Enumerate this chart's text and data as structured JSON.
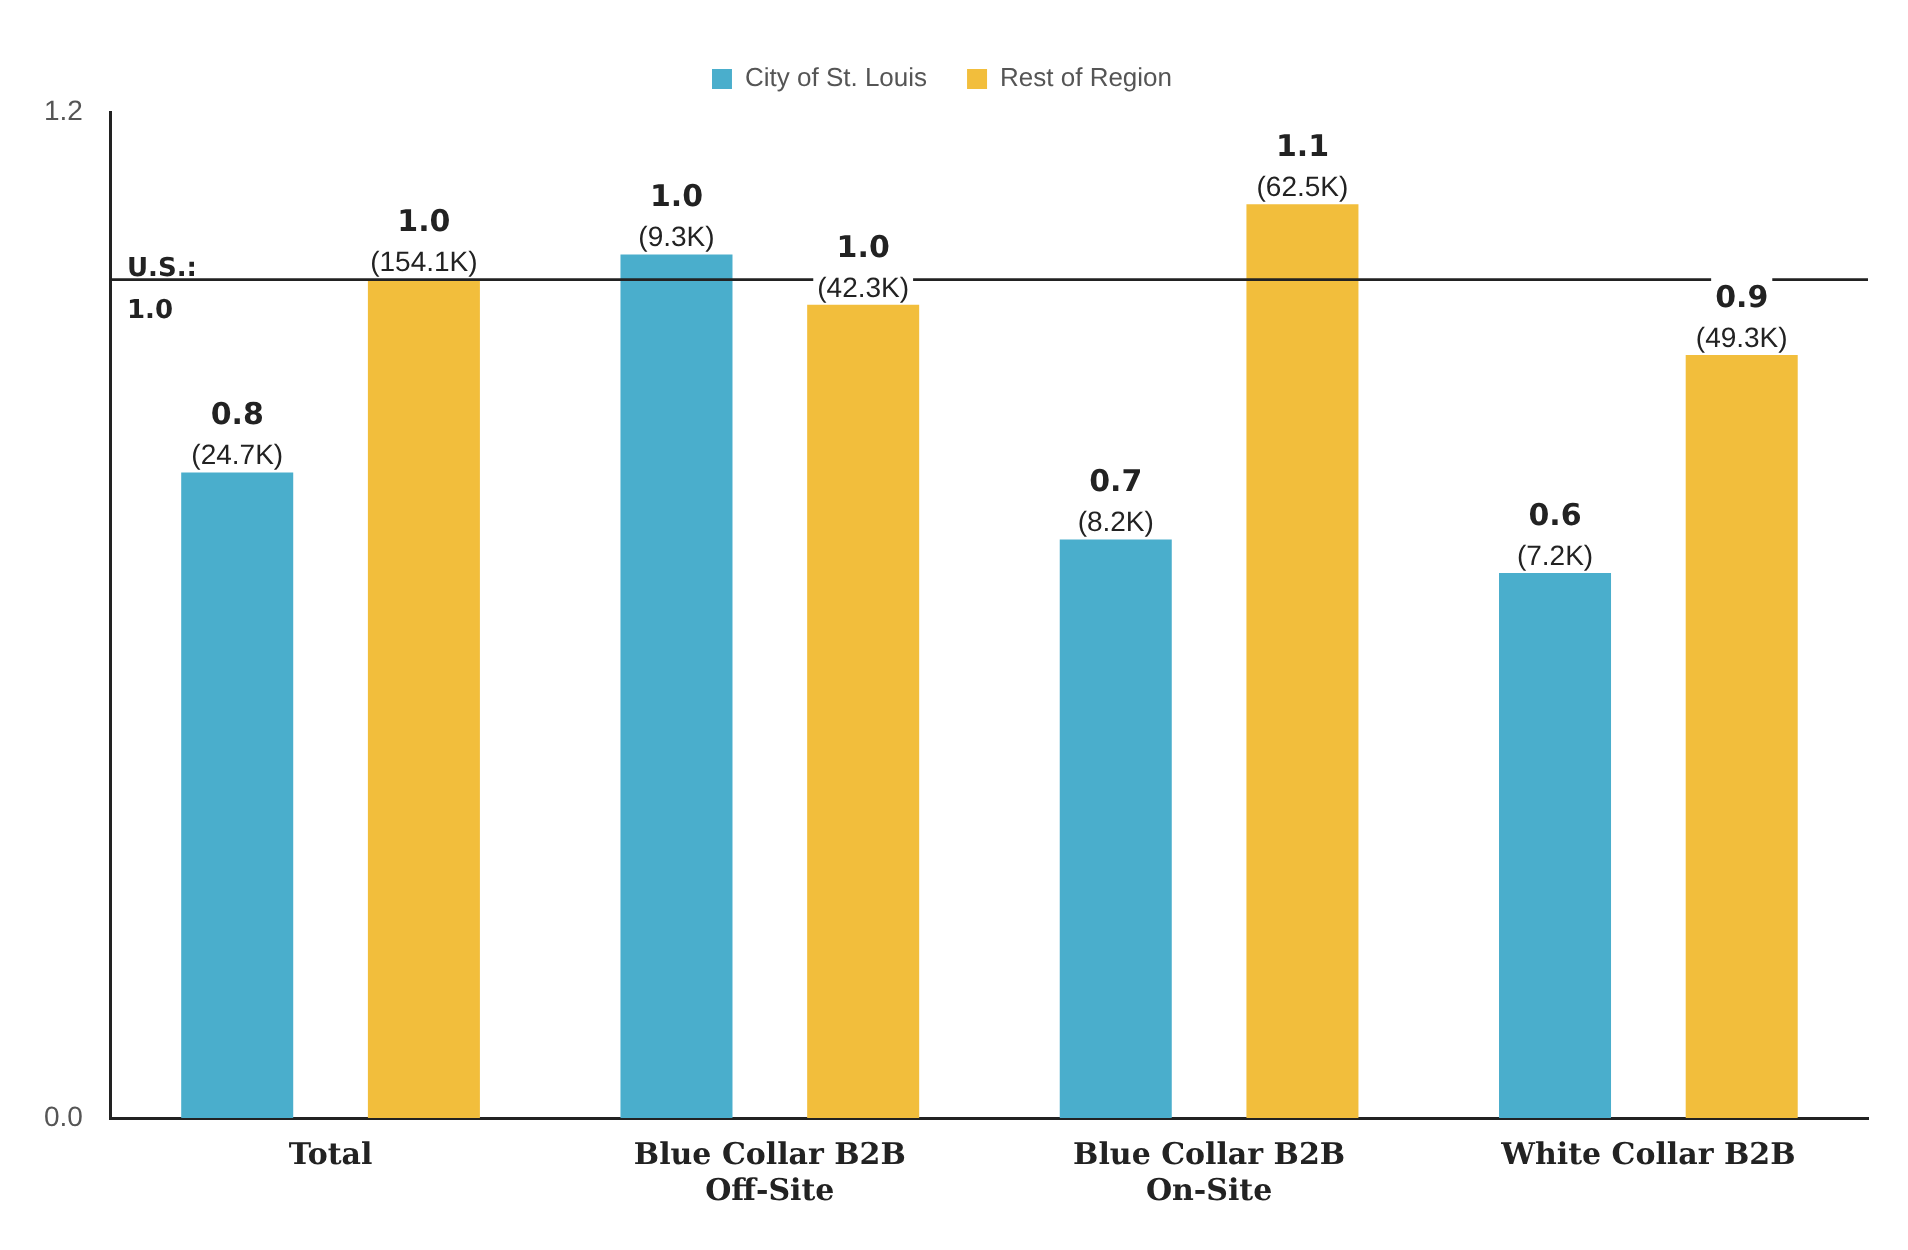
{
  "chart_data": {
    "type": "bar",
    "categories": [
      "Total",
      "Blue Collar B2B\nOff-Site",
      "Blue Collar B2B\nOn-Site",
      "White Collar B2B"
    ],
    "series": [
      {
        "name": "City of St. Louis",
        "color": "#4aaecc",
        "values": [
          0.77,
          1.03,
          0.69,
          0.65
        ],
        "value_labels": [
          "0.8\n(24.7K)",
          "1.0\n(9.3K)",
          "0.7\n(8.2K)",
          "0.6\n(7.2K)"
        ]
      },
      {
        "name": "Rest of Region",
        "color": "#f2be3c",
        "values": [
          1.0,
          0.97,
          1.09,
          0.91
        ],
        "value_labels": [
          "1.0\n(154.1K)",
          "1.0\n(42.3K)",
          "1.1\n(62.5K)",
          "0.9\n(49.3K)"
        ]
      }
    ],
    "ylim": [
      0,
      1.2
    ],
    "yticks": [
      {
        "value": 0,
        "label": "0.0"
      },
      {
        "value": 1.2,
        "label": "1.2"
      }
    ],
    "ref_lines": [
      {
        "axis": "y",
        "value": 1.0,
        "label": "U.S.:\n1.0",
        "color": "#222222"
      }
    ],
    "grid": false,
    "legend": "top"
  }
}
